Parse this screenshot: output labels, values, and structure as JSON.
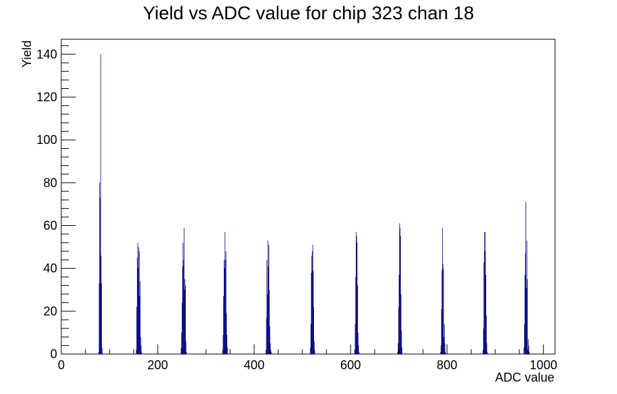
{
  "chart_data": {
    "type": "bar",
    "title": "Yield vs ADC value for chip 323 chan 18",
    "xlabel": "ADC value",
    "ylabel": "Yield",
    "xlim": [
      0,
      1024
    ],
    "ylim": [
      0,
      147
    ],
    "x_ticks": [
      0,
      200,
      400,
      600,
      800,
      1000
    ],
    "y_ticks": [
      0,
      20,
      40,
      60,
      80,
      100,
      120,
      140
    ],
    "bin_width": 1,
    "grid": false,
    "legend": "none",
    "colors": {
      "histogram": "#00007f",
      "axes": "#000000",
      "background": "#ffffff"
    },
    "bins": [
      [
        77,
        1
      ],
      [
        78,
        33
      ],
      [
        79,
        80
      ],
      [
        80,
        73
      ],
      [
        81,
        140
      ],
      [
        82,
        46
      ],
      [
        83,
        33
      ],
      [
        84,
        3
      ],
      [
        155,
        2
      ],
      [
        156,
        22
      ],
      [
        157,
        45
      ],
      [
        158,
        52
      ],
      [
        159,
        40
      ],
      [
        160,
        50
      ],
      [
        161,
        48
      ],
      [
        162,
        27
      ],
      [
        163,
        34
      ],
      [
        164,
        8
      ],
      [
        165,
        4
      ],
      [
        166,
        1
      ],
      [
        248,
        3
      ],
      [
        249,
        10
      ],
      [
        250,
        24
      ],
      [
        251,
        41
      ],
      [
        252,
        52
      ],
      [
        253,
        44
      ],
      [
        254,
        59
      ],
      [
        255,
        30
      ],
      [
        256,
        35
      ],
      [
        257,
        32
      ],
      [
        258,
        6
      ],
      [
        259,
        1
      ],
      [
        334,
        2
      ],
      [
        335,
        9
      ],
      [
        336,
        27
      ],
      [
        337,
        44
      ],
      [
        338,
        40
      ],
      [
        339,
        57
      ],
      [
        340,
        44
      ],
      [
        341,
        48
      ],
      [
        342,
        19
      ],
      [
        343,
        9
      ],
      [
        344,
        3
      ],
      [
        424,
        2
      ],
      [
        425,
        17
      ],
      [
        426,
        44
      ],
      [
        427,
        28
      ],
      [
        428,
        53
      ],
      [
        429,
        41
      ],
      [
        430,
        51
      ],
      [
        431,
        30
      ],
      [
        432,
        13
      ],
      [
        433,
        5
      ],
      [
        434,
        2
      ],
      [
        435,
        1
      ],
      [
        516,
        3
      ],
      [
        517,
        14
      ],
      [
        518,
        38
      ],
      [
        519,
        46
      ],
      [
        520,
        48
      ],
      [
        521,
        51
      ],
      [
        522,
        39
      ],
      [
        523,
        22
      ],
      [
        524,
        6
      ],
      [
        525,
        2
      ],
      [
        608,
        2
      ],
      [
        609,
        14
      ],
      [
        610,
        36
      ],
      [
        611,
        57
      ],
      [
        612,
        55
      ],
      [
        613,
        52
      ],
      [
        614,
        32
      ],
      [
        615,
        10
      ],
      [
        616,
        4
      ],
      [
        617,
        1
      ],
      [
        697,
        1
      ],
      [
        698,
        5
      ],
      [
        699,
        22
      ],
      [
        700,
        37
      ],
      [
        701,
        61
      ],
      [
        702,
        59
      ],
      [
        703,
        55
      ],
      [
        704,
        28
      ],
      [
        705,
        11
      ],
      [
        706,
        3
      ],
      [
        786,
        1
      ],
      [
        787,
        4
      ],
      [
        788,
        21
      ],
      [
        789,
        39
      ],
      [
        790,
        59
      ],
      [
        791,
        42
      ],
      [
        792,
        40
      ],
      [
        793,
        8
      ],
      [
        794,
        14
      ],
      [
        795,
        5
      ],
      [
        796,
        1
      ],
      [
        874,
        2
      ],
      [
        875,
        12
      ],
      [
        876,
        43
      ],
      [
        877,
        57
      ],
      [
        878,
        48
      ],
      [
        879,
        57
      ],
      [
        880,
        37
      ],
      [
        881,
        18
      ],
      [
        882,
        5
      ],
      [
        883,
        1
      ],
      [
        959,
        3
      ],
      [
        960,
        14
      ],
      [
        961,
        37
      ],
      [
        962,
        47
      ],
      [
        963,
        71
      ],
      [
        964,
        31
      ],
      [
        965,
        53
      ],
      [
        966,
        35
      ],
      [
        967,
        2
      ],
      [
        968,
        7
      ],
      [
        969,
        4
      ],
      [
        970,
        1
      ]
    ]
  }
}
